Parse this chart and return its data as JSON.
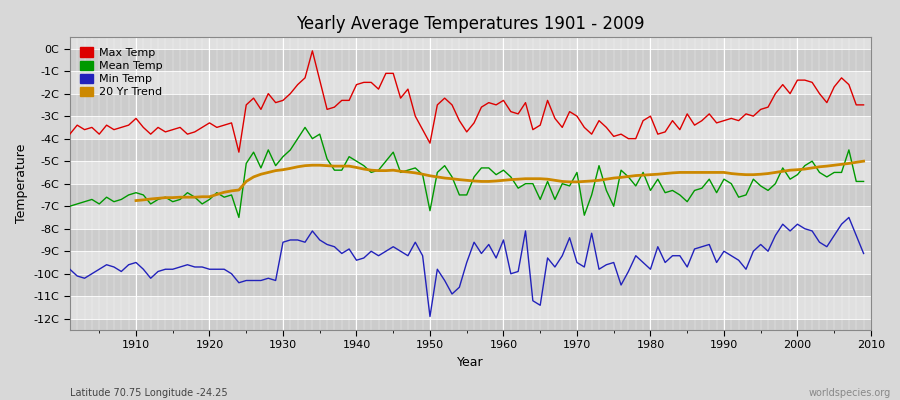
{
  "title": "Yearly Average Temperatures 1901 - 2009",
  "xlabel": "Year",
  "ylabel": "Temperature",
  "lat_lon_text": "Latitude 70.75 Longitude -24.25",
  "credit_text": "worldspecies.org",
  "years": [
    1901,
    1902,
    1903,
    1904,
    1905,
    1906,
    1907,
    1908,
    1909,
    1910,
    1911,
    1912,
    1913,
    1914,
    1915,
    1916,
    1917,
    1918,
    1919,
    1920,
    1921,
    1922,
    1923,
    1924,
    1925,
    1926,
    1927,
    1928,
    1929,
    1930,
    1931,
    1932,
    1933,
    1934,
    1935,
    1936,
    1937,
    1938,
    1939,
    1940,
    1941,
    1942,
    1943,
    1944,
    1945,
    1946,
    1947,
    1948,
    1949,
    1950,
    1951,
    1952,
    1953,
    1954,
    1955,
    1956,
    1957,
    1958,
    1959,
    1960,
    1961,
    1962,
    1963,
    1964,
    1965,
    1966,
    1967,
    1968,
    1969,
    1970,
    1971,
    1972,
    1973,
    1974,
    1975,
    1976,
    1977,
    1978,
    1979,
    1980,
    1981,
    1982,
    1983,
    1984,
    1985,
    1986,
    1987,
    1988,
    1989,
    1990,
    1991,
    1992,
    1993,
    1994,
    1995,
    1996,
    1997,
    1998,
    1999,
    2000,
    2001,
    2002,
    2003,
    2004,
    2005,
    2006,
    2007,
    2008,
    2009
  ],
  "max_temp": [
    -3.8,
    -3.4,
    -3.6,
    -3.5,
    -3.8,
    -3.4,
    -3.6,
    -3.5,
    -3.4,
    -3.1,
    -3.5,
    -3.8,
    -3.5,
    -3.7,
    -3.6,
    -3.5,
    -3.8,
    -3.7,
    -3.5,
    -3.3,
    -3.5,
    -3.4,
    -3.3,
    -4.6,
    -2.5,
    -2.2,
    -2.7,
    -2.0,
    -2.4,
    -2.3,
    -2.0,
    -1.6,
    -1.3,
    -0.1,
    -1.4,
    -2.7,
    -2.6,
    -2.3,
    -2.3,
    -1.6,
    -1.5,
    -1.5,
    -1.8,
    -1.1,
    -1.1,
    -2.2,
    -1.8,
    -3.0,
    -3.6,
    -4.2,
    -2.5,
    -2.2,
    -2.5,
    -3.2,
    -3.7,
    -3.3,
    -2.6,
    -2.4,
    -2.5,
    -2.3,
    -2.8,
    -2.9,
    -2.4,
    -3.6,
    -3.4,
    -2.3,
    -3.1,
    -3.5,
    -2.8,
    -3.0,
    -3.5,
    -3.8,
    -3.2,
    -3.5,
    -3.9,
    -3.8,
    -4.0,
    -4.0,
    -3.2,
    -3.0,
    -3.8,
    -3.7,
    -3.2,
    -3.6,
    -2.9,
    -3.4,
    -3.2,
    -2.9,
    -3.3,
    -3.2,
    -3.1,
    -3.2,
    -2.9,
    -3.0,
    -2.7,
    -2.6,
    -2.0,
    -1.6,
    -2.0,
    -1.4,
    -1.4,
    -1.5,
    -2.0,
    -2.4,
    -1.7,
    -1.3,
    -1.6,
    -2.5,
    -2.5
  ],
  "mean_temp": [
    -7.0,
    -6.9,
    -6.8,
    -6.7,
    -6.9,
    -6.6,
    -6.8,
    -6.7,
    -6.5,
    -6.4,
    -6.5,
    -6.9,
    -6.7,
    -6.6,
    -6.8,
    -6.7,
    -6.4,
    -6.6,
    -6.9,
    -6.7,
    -6.4,
    -6.6,
    -6.5,
    -7.5,
    -5.1,
    -4.6,
    -5.3,
    -4.5,
    -5.2,
    -4.8,
    -4.5,
    -4.0,
    -3.5,
    -4.0,
    -3.8,
    -4.9,
    -5.4,
    -5.4,
    -4.8,
    -5.0,
    -5.2,
    -5.5,
    -5.4,
    -5.0,
    -4.6,
    -5.5,
    -5.4,
    -5.3,
    -5.6,
    -7.2,
    -5.5,
    -5.2,
    -5.7,
    -6.5,
    -6.5,
    -5.7,
    -5.3,
    -5.3,
    -5.6,
    -5.4,
    -5.7,
    -6.2,
    -6.0,
    -6.0,
    -6.7,
    -5.9,
    -6.7,
    -6.0,
    -6.1,
    -5.5,
    -7.4,
    -6.5,
    -5.2,
    -6.3,
    -7.0,
    -5.4,
    -5.7,
    -6.1,
    -5.5,
    -6.3,
    -5.8,
    -6.4,
    -6.3,
    -6.5,
    -6.8,
    -6.3,
    -6.2,
    -5.8,
    -6.4,
    -5.8,
    -6.0,
    -6.6,
    -6.5,
    -5.8,
    -6.1,
    -6.3,
    -6.0,
    -5.3,
    -5.8,
    -5.6,
    -5.2,
    -5.0,
    -5.5,
    -5.7,
    -5.5,
    -5.5,
    -4.5,
    -5.9,
    -5.9
  ],
  "min_temp": [
    -9.8,
    -10.1,
    -10.2,
    -10.0,
    -9.8,
    -9.6,
    -9.7,
    -9.9,
    -9.6,
    -9.5,
    -9.8,
    -10.2,
    -9.9,
    -9.8,
    -9.8,
    -9.7,
    -9.6,
    -9.7,
    -9.7,
    -9.8,
    -9.8,
    -9.8,
    -10.0,
    -10.4,
    -10.3,
    -10.3,
    -10.3,
    -10.2,
    -10.3,
    -8.6,
    -8.5,
    -8.5,
    -8.6,
    -8.1,
    -8.5,
    -8.7,
    -8.8,
    -9.1,
    -8.9,
    -9.4,
    -9.3,
    -9.0,
    -9.2,
    -9.0,
    -8.8,
    -9.0,
    -9.2,
    -8.6,
    -9.2,
    -11.9,
    -9.8,
    -10.3,
    -10.9,
    -10.6,
    -9.5,
    -8.6,
    -9.1,
    -8.7,
    -9.3,
    -8.5,
    -10.0,
    -9.9,
    -8.1,
    -11.2,
    -11.4,
    -9.3,
    -9.7,
    -9.2,
    -8.4,
    -9.5,
    -9.7,
    -8.2,
    -9.8,
    -9.6,
    -9.5,
    -10.5,
    -9.9,
    -9.2,
    -9.5,
    -9.8,
    -8.8,
    -9.5,
    -9.2,
    -9.2,
    -9.7,
    -8.9,
    -8.8,
    -8.7,
    -9.5,
    -9.0,
    -9.2,
    -9.4,
    -9.8,
    -9.0,
    -8.7,
    -9.0,
    -8.3,
    -7.8,
    -8.1,
    -7.8,
    -8.0,
    -8.1,
    -8.6,
    -8.8,
    -8.3,
    -7.8,
    -7.5,
    -8.3,
    -9.1
  ],
  "trend_years": [
    1910,
    1911,
    1912,
    1913,
    1914,
    1915,
    1916,
    1917,
    1918,
    1919,
    1920,
    1921,
    1922,
    1923,
    1924,
    1925,
    1926,
    1927,
    1928,
    1929,
    1930,
    1931,
    1932,
    1933,
    1934,
    1935,
    1936,
    1937,
    1938,
    1939,
    1940,
    1941,
    1942,
    1943,
    1944,
    1945,
    1946,
    1947,
    1948,
    1949,
    1950,
    1951,
    1952,
    1953,
    1954,
    1955,
    1956,
    1957,
    1958,
    1959,
    1960,
    1961,
    1962,
    1963,
    1964,
    1965,
    1966,
    1967,
    1968,
    1969,
    1970,
    1971,
    1972,
    1973,
    1974,
    1975,
    1976,
    1977,
    1978,
    1979,
    1980,
    1981,
    1982,
    1983,
    1984,
    1985,
    1986,
    1987,
    1988,
    1989,
    1990,
    1991,
    1992,
    1993,
    1994,
    1995,
    1996,
    1997,
    1998,
    1999,
    2000,
    2001,
    2002,
    2003,
    2004,
    2005,
    2006,
    2007,
    2008,
    2009
  ],
  "trend_vals": [
    -6.75,
    -6.72,
    -6.68,
    -6.65,
    -6.62,
    -6.62,
    -6.6,
    -6.6,
    -6.6,
    -6.58,
    -6.58,
    -6.48,
    -6.38,
    -6.32,
    -6.28,
    -5.9,
    -5.7,
    -5.58,
    -5.5,
    -5.42,
    -5.38,
    -5.32,
    -5.25,
    -5.2,
    -5.18,
    -5.18,
    -5.2,
    -5.22,
    -5.22,
    -5.22,
    -5.28,
    -5.35,
    -5.4,
    -5.42,
    -5.42,
    -5.4,
    -5.45,
    -5.48,
    -5.52,
    -5.58,
    -5.65,
    -5.7,
    -5.75,
    -5.78,
    -5.82,
    -5.85,
    -5.88,
    -5.9,
    -5.9,
    -5.88,
    -5.85,
    -5.82,
    -5.8,
    -5.78,
    -5.78,
    -5.78,
    -5.8,
    -5.85,
    -5.9,
    -5.92,
    -5.92,
    -5.9,
    -5.88,
    -5.85,
    -5.8,
    -5.75,
    -5.72,
    -5.68,
    -5.64,
    -5.62,
    -5.6,
    -5.58,
    -5.55,
    -5.52,
    -5.5,
    -5.5,
    -5.5,
    -5.5,
    -5.5,
    -5.5,
    -5.5,
    -5.55,
    -5.58,
    -5.6,
    -5.6,
    -5.58,
    -5.55,
    -5.5,
    -5.45,
    -5.4,
    -5.38,
    -5.35,
    -5.3,
    -5.25,
    -5.22,
    -5.18,
    -5.14,
    -5.1,
    -5.05,
    -5.0
  ],
  "max_color": "#dd0000",
  "mean_color": "#009900",
  "min_color": "#2222bb",
  "trend_color": "#cc8800",
  "bg_color": "#d8d8d8",
  "plot_bg_dark": "#cccccc",
  "plot_bg_light": "#e0e0e0",
  "grid_color": "#bbbbbb",
  "white_line_color": "#ffffff",
  "ylim": [
    -12.5,
    0.5
  ],
  "yticks": [
    0,
    -1,
    -2,
    -3,
    -4,
    -5,
    -6,
    -7,
    -8,
    -9,
    -10,
    -11,
    -12
  ],
  "ytick_labels": [
    "0C",
    "-1C",
    "-2C",
    "-3C",
    "-4C",
    "-5C",
    "-6C",
    "-7C",
    "-8C",
    "-9C",
    "-10C",
    "-11C",
    "-12C"
  ],
  "xlim": [
    1901,
    2010
  ],
  "legend_labels": [
    "Max Temp",
    "Mean Temp",
    "Min Temp",
    "20 Yr Trend"
  ]
}
